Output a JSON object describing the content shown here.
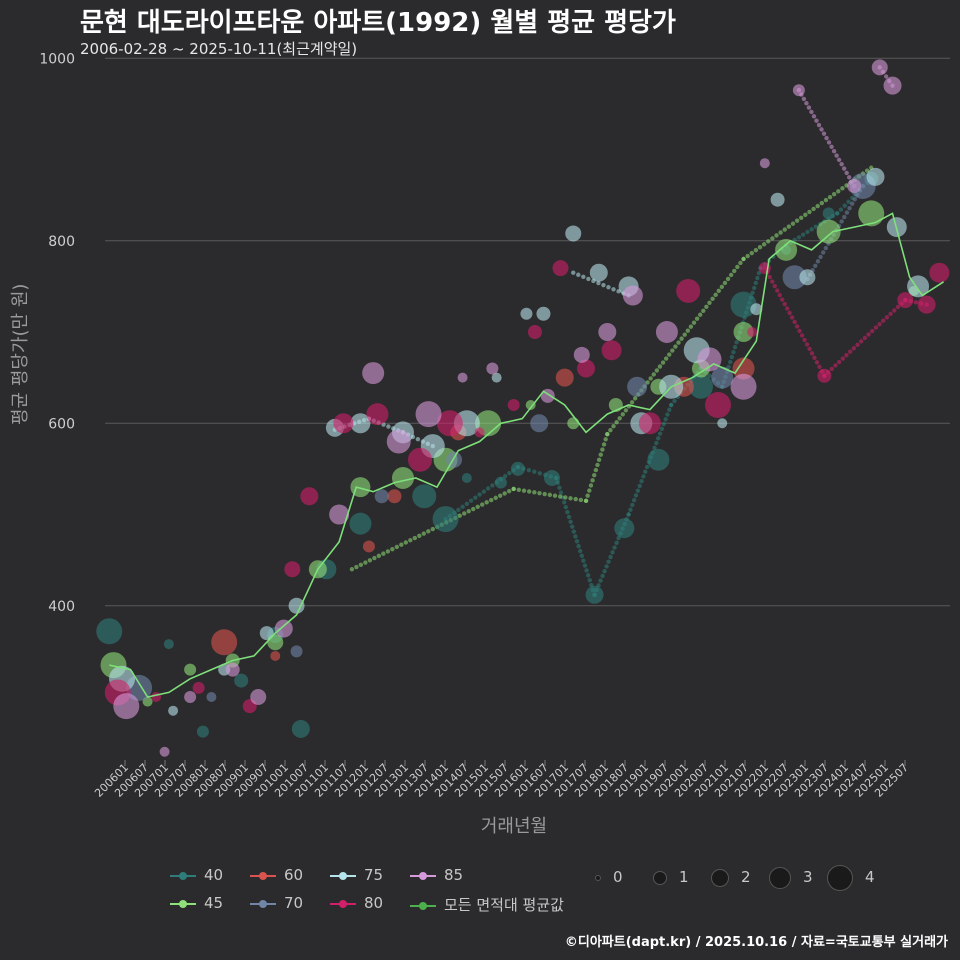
{
  "header": {
    "title": "문현 대도라이프타운 아파트(1992) 월별 평균 평당가",
    "subtitle": "2006-02-28 ~ 2025-10-11(최근계약일)"
  },
  "footer": "©디아파트(dapt.kr) / 2025.10.16 / 자료=국토교통부 실거래가",
  "colors": {
    "background": "#2b2a2c",
    "grid": "#5a5a5a",
    "s40": "#2e7d7a",
    "s45": "#8fe07a",
    "s60": "#d9544f",
    "s70": "#6f86a6",
    "s75": "#b7e3ea",
    "s80": "#d1206a",
    "s85": "#d49ad9",
    "all": "#4cb04c"
  },
  "legend": {
    "series": [
      {
        "label": "40",
        "color": "#2e7d7a"
      },
      {
        "label": "60",
        "color": "#d9544f"
      },
      {
        "label": "75",
        "color": "#b7e3ea"
      },
      {
        "label": "85",
        "color": "#d49ad9"
      },
      {
        "label": "45",
        "color": "#8fe07a"
      },
      {
        "label": "70",
        "color": "#6f86a6"
      },
      {
        "label": "80",
        "color": "#d1206a"
      },
      {
        "label": "모든 면적대 평균값",
        "color": "#4cb04c"
      }
    ],
    "sizes": [
      "0",
      "1",
      "2",
      "3",
      "4"
    ]
  },
  "chart_data": {
    "type": "scatter",
    "title": "문현 대도라이프타운 아파트(1992) 월별 평균 평당가",
    "xlabel": "거래년월",
    "ylabel": "평균 평당가(만 원)",
    "ylim": [
      220,
      1020
    ],
    "yticks": [
      400,
      600,
      800,
      1000
    ],
    "xticks": [
      "200601",
      "200607",
      "200701",
      "200707",
      "200801",
      "200807",
      "200901",
      "200907",
      "201001",
      "201007",
      "201101",
      "201107",
      "201201",
      "201207",
      "201301",
      "201307",
      "201401",
      "201407",
      "201501",
      "201507",
      "201601",
      "201607",
      "201701",
      "201707",
      "201801",
      "201807",
      "201901",
      "201907",
      "202001",
      "202007",
      "202101",
      "202107",
      "202201",
      "202207",
      "202301",
      "202307",
      "202401",
      "202407",
      "202501",
      "202507"
    ],
    "x_range": [
      2006.0,
      2025.85
    ],
    "series": [
      {
        "name": "40",
        "color": "#2e7d7a",
        "points": [
          [
            2006.1,
            372
          ],
          [
            2007.5,
            358
          ],
          [
            2008.3,
            262
          ],
          [
            2009.2,
            318
          ],
          [
            2010.0,
            368
          ],
          [
            2010.6,
            265
          ],
          [
            2011.2,
            440
          ],
          [
            2012.0,
            490
          ],
          [
            2013.5,
            520
          ],
          [
            2014.0,
            495
          ],
          [
            2014.5,
            540
          ],
          [
            2015.3,
            535
          ],
          [
            2015.7,
            550
          ],
          [
            2016.5,
            540
          ],
          [
            2017.5,
            412
          ],
          [
            2018.2,
            485
          ],
          [
            2019.0,
            560
          ],
          [
            2020.0,
            640
          ],
          [
            2021.0,
            730
          ],
          [
            2022.0,
            790
          ],
          [
            2023.0,
            830
          ],
          [
            2024.0,
            868
          ]
        ]
      },
      {
        "name": "45",
        "color": "#8fe07a",
        "points": [
          [
            2006.2,
            335
          ],
          [
            2007.0,
            295
          ],
          [
            2008.0,
            330
          ],
          [
            2009.0,
            340
          ],
          [
            2010.0,
            360
          ],
          [
            2011.0,
            440
          ],
          [
            2012.0,
            530
          ],
          [
            2013.0,
            540
          ],
          [
            2014.0,
            560
          ],
          [
            2015.0,
            600
          ],
          [
            2016.0,
            620
          ],
          [
            2017.0,
            600
          ],
          [
            2018.0,
            620
          ],
          [
            2019.0,
            640
          ],
          [
            2020.0,
            660
          ],
          [
            2021.0,
            700
          ],
          [
            2022.0,
            790
          ],
          [
            2023.0,
            810
          ],
          [
            2024.0,
            830
          ],
          [
            2025.0,
            745
          ]
        ]
      },
      {
        "name": "60",
        "color": "#d9544f",
        "points": [
          [
            2008.8,
            360
          ],
          [
            2010.0,
            345
          ],
          [
            2012.2,
            465
          ],
          [
            2012.8,
            520
          ],
          [
            2014.3,
            590
          ],
          [
            2016.8,
            650
          ],
          [
            2019.6,
            640
          ],
          [
            2021.0,
            660
          ]
        ]
      },
      {
        "name": "70",
        "color": "#6f86a6",
        "points": [
          [
            2006.8,
            310
          ],
          [
            2008.5,
            300
          ],
          [
            2010.5,
            350
          ],
          [
            2012.5,
            520
          ],
          [
            2014.2,
            560
          ],
          [
            2016.2,
            600
          ],
          [
            2018.5,
            640
          ],
          [
            2020.5,
            650
          ],
          [
            2022.2,
            760
          ],
          [
            2023.8,
            860
          ]
        ]
      },
      {
        "name": "75",
        "color": "#b7e3ea",
        "points": [
          [
            2006.4,
            320
          ],
          [
            2007.6,
            285
          ],
          [
            2008.8,
            330
          ],
          [
            2009.8,
            370
          ],
          [
            2010.5,
            400
          ],
          [
            2011.4,
            595
          ],
          [
            2012.0,
            600
          ],
          [
            2013.0,
            590
          ],
          [
            2013.7,
            575
          ],
          [
            2014.5,
            600
          ],
          [
            2015.2,
            650
          ],
          [
            2015.9,
            720
          ],
          [
            2016.3,
            720
          ],
          [
            2017.0,
            808
          ],
          [
            2017.6,
            765
          ],
          [
            2018.3,
            750
          ],
          [
            2018.6,
            600
          ],
          [
            2019.3,
            640
          ],
          [
            2019.9,
            680
          ],
          [
            2020.5,
            600
          ],
          [
            2021.3,
            725
          ],
          [
            2021.8,
            845
          ],
          [
            2022.5,
            760
          ],
          [
            2024.1,
            870
          ],
          [
            2024.6,
            815
          ],
          [
            2025.1,
            750
          ]
        ]
      },
      {
        "name": "80",
        "color": "#d1206a",
        "points": [
          [
            2006.3,
            305
          ],
          [
            2007.2,
            300
          ],
          [
            2008.2,
            310
          ],
          [
            2009.4,
            290
          ],
          [
            2010.4,
            440
          ],
          [
            2010.8,
            520
          ],
          [
            2011.6,
            600
          ],
          [
            2012.4,
            610
          ],
          [
            2013.4,
            560
          ],
          [
            2014.1,
            600
          ],
          [
            2014.8,
            590
          ],
          [
            2015.6,
            620
          ],
          [
            2016.1,
            700
          ],
          [
            2016.7,
            770
          ],
          [
            2017.3,
            660
          ],
          [
            2017.9,
            680
          ],
          [
            2018.8,
            600
          ],
          [
            2019.7,
            745
          ],
          [
            2020.4,
            620
          ],
          [
            2021.2,
            700
          ],
          [
            2021.5,
            770
          ],
          [
            2022.9,
            652
          ],
          [
            2024.8,
            735
          ],
          [
            2025.3,
            730
          ],
          [
            2025.6,
            765
          ]
        ]
      },
      {
        "name": "85",
        "color": "#d49ad9",
        "points": [
          [
            2006.5,
            290
          ],
          [
            2007.4,
            240
          ],
          [
            2008.0,
            300
          ],
          [
            2009.0,
            330
          ],
          [
            2009.6,
            300
          ],
          [
            2010.2,
            375
          ],
          [
            2011.5,
            500
          ],
          [
            2012.3,
            655
          ],
          [
            2012.9,
            580
          ],
          [
            2013.6,
            610
          ],
          [
            2014.4,
            650
          ],
          [
            2015.1,
            660
          ],
          [
            2016.4,
            630
          ],
          [
            2017.2,
            675
          ],
          [
            2017.8,
            700
          ],
          [
            2018.4,
            740
          ],
          [
            2019.2,
            700
          ],
          [
            2020.2,
            670
          ],
          [
            2021.0,
            640
          ],
          [
            2021.5,
            885
          ],
          [
            2022.3,
            965
          ],
          [
            2023.6,
            860
          ],
          [
            2024.2,
            990
          ],
          [
            2024.5,
            970
          ]
        ]
      },
      {
        "name": "모든 면적대 평균값",
        "color": "#4cb04c",
        "line": [
          [
            2006.1,
            335
          ],
          [
            2006.6,
            330
          ],
          [
            2007.0,
            300
          ],
          [
            2007.5,
            305
          ],
          [
            2008.0,
            320
          ],
          [
            2008.5,
            330
          ],
          [
            2009.0,
            340
          ],
          [
            2009.5,
            345
          ],
          [
            2010.0,
            370
          ],
          [
            2010.5,
            390
          ],
          [
            2011.0,
            440
          ],
          [
            2011.5,
            470
          ],
          [
            2011.9,
            530
          ],
          [
            2012.3,
            525
          ],
          [
            2012.8,
            535
          ],
          [
            2013.3,
            540
          ],
          [
            2013.8,
            530
          ],
          [
            2014.3,
            570
          ],
          [
            2014.8,
            580
          ],
          [
            2015.3,
            600
          ],
          [
            2015.8,
            605
          ],
          [
            2016.3,
            635
          ],
          [
            2016.8,
            620
          ],
          [
            2017.3,
            590
          ],
          [
            2017.8,
            610
          ],
          [
            2018.3,
            620
          ],
          [
            2018.8,
            615
          ],
          [
            2019.3,
            640
          ],
          [
            2019.8,
            650
          ],
          [
            2020.3,
            665
          ],
          [
            2020.8,
            655
          ],
          [
            2021.3,
            690
          ],
          [
            2021.6,
            780
          ],
          [
            2022.1,
            800
          ],
          [
            2022.6,
            790
          ],
          [
            2023.1,
            810
          ],
          [
            2023.6,
            815
          ],
          [
            2024.1,
            820
          ],
          [
            2024.5,
            830
          ],
          [
            2024.9,
            760
          ],
          [
            2025.2,
            740
          ],
          [
            2025.7,
            755
          ]
        ]
      }
    ],
    "trend_lines": [
      {
        "name": "40",
        "color": "#2e7d7a",
        "points": [
          [
            2014.0,
            495
          ],
          [
            2015.7,
            552
          ],
          [
            2016.6,
            540
          ],
          [
            2017.5,
            412
          ],
          [
            2018.3,
            500
          ],
          [
            2019.3,
            620
          ],
          [
            2020.0,
            660
          ],
          [
            2020.5,
            640
          ],
          [
            2021.4,
            770
          ],
          [
            2022.0,
            795
          ],
          [
            2023.2,
            830
          ],
          [
            2024.0,
            868
          ]
        ]
      },
      {
        "name": "45",
        "color": "#8fe07a",
        "points": [
          [
            2011.8,
            440
          ],
          [
            2015.6,
            528
          ],
          [
            2017.3,
            515
          ],
          [
            2017.8,
            588
          ],
          [
            2021.0,
            780
          ],
          [
            2024.0,
            880
          ]
        ]
      },
      {
        "name": "75",
        "color": "#b7e3ea",
        "points": [
          [
            2011.4,
            593
          ],
          [
            2012.2,
            605
          ],
          [
            2013.0,
            590
          ],
          [
            2013.7,
            575
          ]
        ]
      },
      {
        "name": "75b",
        "color": "#b7e3ea",
        "points": [
          [
            2017.0,
            765
          ],
          [
            2018.3,
            740
          ]
        ]
      },
      {
        "name": "80",
        "color": "#d1206a",
        "points": [
          [
            2021.5,
            770
          ],
          [
            2022.9,
            652
          ],
          [
            2024.8,
            735
          ],
          [
            2025.3,
            730
          ]
        ]
      },
      {
        "name": "85",
        "color": "#d49ad9",
        "points": [
          [
            2022.3,
            965
          ],
          [
            2023.6,
            860
          ]
        ]
      },
      {
        "name": "85b",
        "color": "#d49ad9",
        "points": [
          [
            2024.2,
            990
          ],
          [
            2024.5,
            970
          ]
        ]
      },
      {
        "name": "70",
        "color": "#6f86a6",
        "points": [
          [
            2022.5,
            758
          ],
          [
            2023.8,
            860
          ]
        ]
      }
    ]
  }
}
